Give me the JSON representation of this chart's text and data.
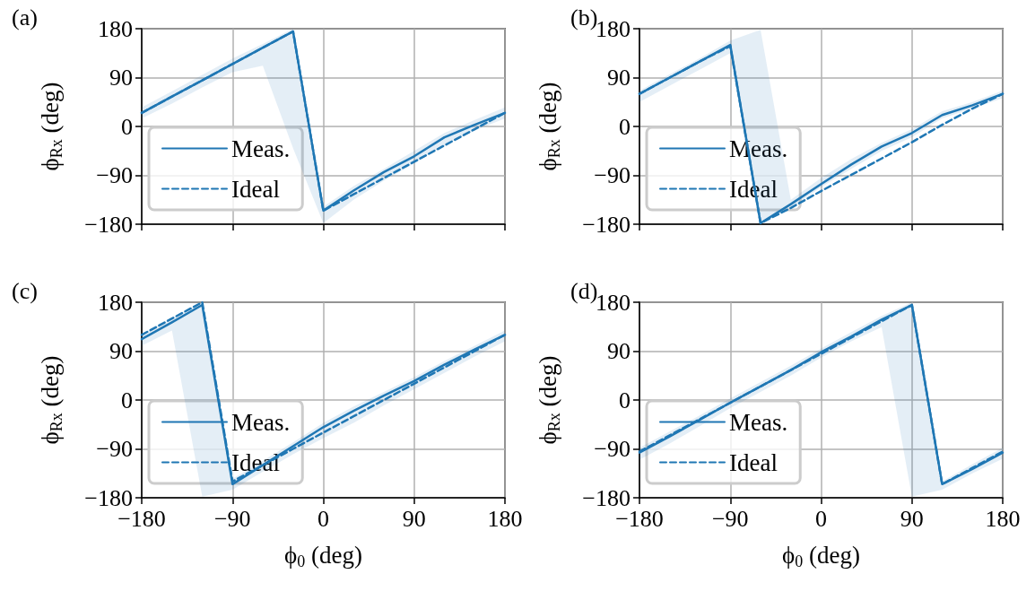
{
  "chart_data": [
    {
      "type": "line",
      "title": "(a)",
      "ylabel": "ϕ$_{Rx}$ (deg)",
      "tick_labels": "y",
      "x": [
        -180,
        -150,
        -120,
        -90,
        -60,
        -30,
        0,
        30,
        60,
        90,
        120,
        150,
        180
      ],
      "series": [
        {
          "name": "Meas.",
          "color": "#1f77b4",
          "line_style": "solid",
          "values": [
            25,
            55,
            85,
            115,
            145,
            175,
            -155,
            -118,
            -84,
            -55,
            -20,
            3,
            25
          ],
          "lower": [
            15,
            42,
            72,
            100,
            112,
            -40,
            -178,
            -135,
            -100,
            -68,
            -35,
            -8,
            15
          ],
          "upper": [
            35,
            65,
            95,
            125,
            152,
            180,
            -148,
            -110,
            -78,
            -45,
            -12,
            12,
            35
          ]
        },
        {
          "name": "Ideal",
          "color": "#1f77b4",
          "line_style": "dashed",
          "values": [
            25,
            55,
            85,
            115,
            145,
            175,
            -155,
            -125,
            -95,
            -65,
            -35,
            -5,
            25
          ]
        }
      ],
      "xlim": [
        -180,
        180
      ],
      "xticks": [
        {
          "value": -180,
          "label": null
        },
        {
          "value": -90,
          "label": null
        },
        {
          "value": 0,
          "label": null
        },
        {
          "value": 90,
          "label": null
        },
        {
          "value": 180,
          "label": null
        }
      ],
      "ylim": [
        -180,
        180
      ],
      "yticks": [
        -180,
        -90,
        0,
        90,
        180
      ],
      "grid": true,
      "legend": "bottom left"
    },
    {
      "type": "line",
      "title": "(b)",
      "ylabel": "ϕ$_{Rx}$ (deg)",
      "tick_labels": "y",
      "x": [
        -180,
        -150,
        -120,
        -90,
        -60,
        -30,
        0,
        30,
        60,
        90,
        120,
        150,
        180
      ],
      "series": [
        {
          "name": "Meas.",
          "color": "#1f77b4",
          "line_style": "solid",
          "values": [
            60,
            90,
            120,
            150,
            -178,
            -143,
            -106,
            -70,
            -37,
            -12,
            21,
            39,
            60
          ],
          "lower": [
            45,
            75,
            105,
            135,
            -180,
            -150,
            -112,
            -78,
            -45,
            -20,
            15,
            33,
            52
          ],
          "upper": [
            66,
            96,
            126,
            158,
            178,
            -135,
            -95,
            -60,
            -30,
            -5,
            28,
            45,
            66
          ]
        },
        {
          "name": "Ideal",
          "color": "#1f77b4",
          "line_style": "dashed",
          "values": [
            60,
            90,
            120,
            148,
            -178,
            -150,
            -119,
            -89,
            -59,
            -29,
            3,
            33,
            60
          ]
        }
      ],
      "xlim": [
        -180,
        180
      ],
      "xticks": [
        {
          "value": -180,
          "label": null
        },
        {
          "value": -90,
          "label": null
        },
        {
          "value": 0,
          "label": null
        },
        {
          "value": 90,
          "label": null
        },
        {
          "value": 180,
          "label": null
        }
      ],
      "ylim": [
        -180,
        180
      ],
      "yticks": [
        -180,
        -90,
        0,
        90,
        180
      ],
      "grid": true,
      "legend": "bottom left"
    },
    {
      "type": "line",
      "title": "(c)",
      "xlabel": "ϕ$_{0}$ (deg)",
      "ylabel": "ϕ$_{Rx}$ (deg)",
      "x": [
        -180,
        -150,
        -120,
        -90,
        -60,
        -30,
        0,
        30,
        60,
        90,
        120,
        150,
        180
      ],
      "series": [
        {
          "name": "Meas.",
          "color": "#1f77b4",
          "line_style": "solid",
          "values": [
            112,
            143,
            175,
            -155,
            -120,
            -85,
            -50,
            -20,
            8,
            35,
            65,
            93,
            120
          ],
          "lower": [
            100,
            128,
            -178,
            -165,
            -132,
            -100,
            -70,
            -42,
            -10,
            20,
            50,
            80,
            108
          ],
          "upper": [
            122,
            150,
            180,
            -145,
            -112,
            -78,
            -42,
            -12,
            15,
            42,
            72,
            100,
            128
          ]
        },
        {
          "name": "Ideal",
          "color": "#1f77b4",
          "line_style": "dashed",
          "values": [
            120,
            150,
            180,
            -150,
            -120,
            -90,
            -60,
            -30,
            0,
            30,
            60,
            90,
            120
          ]
        }
      ],
      "xlim": [
        -180,
        180
      ],
      "xticks": [
        -180,
        -90,
        0,
        90,
        180
      ],
      "ylim": [
        -180,
        180
      ],
      "yticks": [
        -180,
        -90,
        0,
        90,
        180
      ],
      "grid": true,
      "legend": "bottom left"
    },
    {
      "type": "line",
      "title": "(d)",
      "xlabel": "ϕ$_{0}$ (deg)",
      "ylabel": "ϕ$_{Rx}$ (deg)",
      "x": [
        -180,
        -150,
        -120,
        -90,
        -60,
        -30,
        0,
        30,
        60,
        90,
        120,
        150,
        180
      ],
      "series": [
        {
          "name": "Meas.",
          "color": "#1f77b4",
          "line_style": "solid",
          "values": [
            -97,
            -67,
            -36,
            -5,
            25,
            55,
            88,
            117,
            148,
            175,
            -155,
            -127,
            -97
          ],
          "lower": [
            -110,
            -80,
            -48,
            -15,
            15,
            45,
            78,
            108,
            134,
            -178,
            -165,
            -135,
            -108
          ],
          "upper": [
            -88,
            -58,
            -28,
            3,
            33,
            63,
            95,
            125,
            155,
            180,
            -150,
            -118,
            -88
          ]
        },
        {
          "name": "Ideal",
          "color": "#1f77b4",
          "line_style": "dashed",
          "values": [
            -95,
            -65,
            -35,
            -5,
            25,
            55,
            85,
            115,
            145,
            175,
            -155,
            -125,
            -95
          ]
        }
      ],
      "xlim": [
        -180,
        180
      ],
      "xticks": [
        -180,
        -90,
        0,
        90,
        180
      ],
      "ylim": [
        -180,
        180
      ],
      "yticks": [
        -180,
        -90,
        0,
        90,
        180
      ],
      "grid": true,
      "legend": "bottom left"
    }
  ]
}
